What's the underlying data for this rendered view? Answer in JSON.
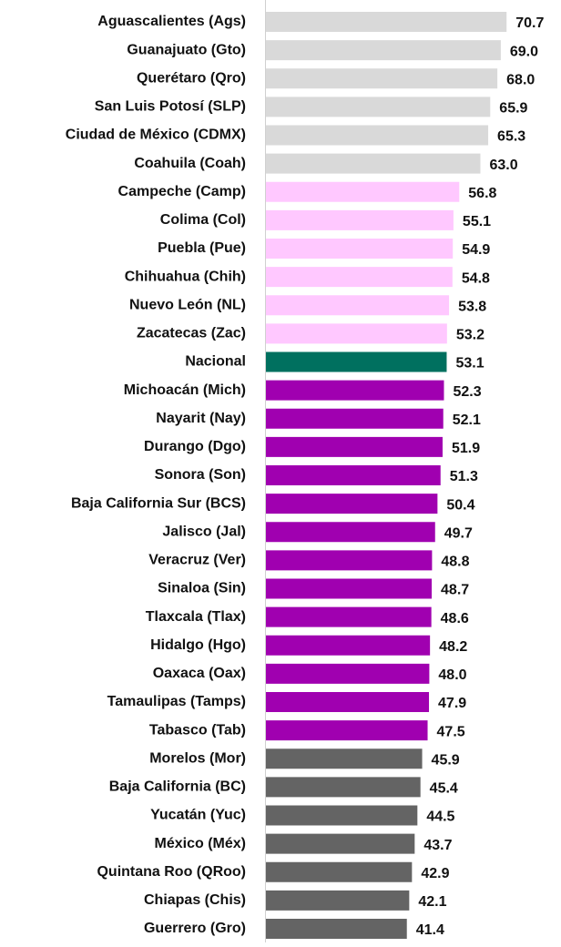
{
  "chart_data": {
    "type": "bar",
    "orientation": "horizontal",
    "categories": [
      "Aguascalientes (Ags)",
      "Guanajuato (Gto)",
      "Querétaro (Qro)",
      "San Luis Potosí (SLP)",
      "Ciudad de México (CDMX)",
      "Coahuila (Coah)",
      "Campeche (Camp)",
      "Colima (Col)",
      "Puebla (Pue)",
      "Chihuahua (Chih)",
      "Nuevo León (NL)",
      "Zacatecas (Zac)",
      "Nacional",
      "Michoacán (Mich)",
      "Nayarit (Nay)",
      "Durango (Dgo)",
      "Sonora (Son)",
      "Baja California Sur (BCS)",
      "Jalisco (Jal)",
      "Veracruz (Ver)",
      "Sinaloa (Sin)",
      "Tlaxcala (Tlax)",
      "Hidalgo (Hgo)",
      "Oaxaca (Oax)",
      "Tamaulipas (Tamps)",
      "Tabasco (Tab)",
      "Morelos (Mor)",
      "Baja California (BC)",
      "Yucatán (Yuc)",
      "México (Méx)",
      "Quintana Roo (QRoo)",
      "Chiapas (Chis)",
      "Guerrero (Gro)"
    ],
    "values": [
      70.7,
      69.0,
      68.0,
      65.9,
      65.3,
      63.0,
      56.8,
      55.1,
      54.9,
      54.8,
      53.8,
      53.2,
      53.1,
      52.3,
      52.1,
      51.9,
      51.3,
      50.4,
      49.7,
      48.8,
      48.7,
      48.6,
      48.2,
      48.0,
      47.9,
      47.5,
      45.9,
      45.4,
      44.5,
      43.7,
      42.9,
      42.1,
      41.4
    ],
    "value_labels": [
      "70.7",
      "69.0",
      "68.0",
      "65.9",
      "65.3",
      "63.0",
      "56.8",
      "55.1",
      "54.9",
      "54.8",
      "53.8",
      "53.2",
      "53.1",
      "52.3",
      "52.1",
      "51.9",
      "51.3",
      "50.4",
      "49.7",
      "48.8",
      "48.7",
      "48.6",
      "48.2",
      "48.0",
      "47.9",
      "47.5",
      "45.9",
      "45.4",
      "44.5",
      "43.7",
      "42.9",
      "42.1",
      "41.4"
    ],
    "colors": [
      "#d9d9d9",
      "#d9d9d9",
      "#d9d9d9",
      "#d9d9d9",
      "#d9d9d9",
      "#d9d9d9",
      "#ffc8ff",
      "#ffc8ff",
      "#ffc8ff",
      "#ffc8ff",
      "#ffc8ff",
      "#ffc8ff",
      "#00705f",
      "#a000b0",
      "#a000b0",
      "#a000b0",
      "#a000b0",
      "#a000b0",
      "#a000b0",
      "#a000b0",
      "#a000b0",
      "#a000b0",
      "#a000b0",
      "#a000b0",
      "#a000b0",
      "#a000b0",
      "#646464",
      "#646464",
      "#646464",
      "#646464",
      "#646464",
      "#646464",
      "#646464"
    ],
    "xlim": [
      0,
      80
    ]
  }
}
